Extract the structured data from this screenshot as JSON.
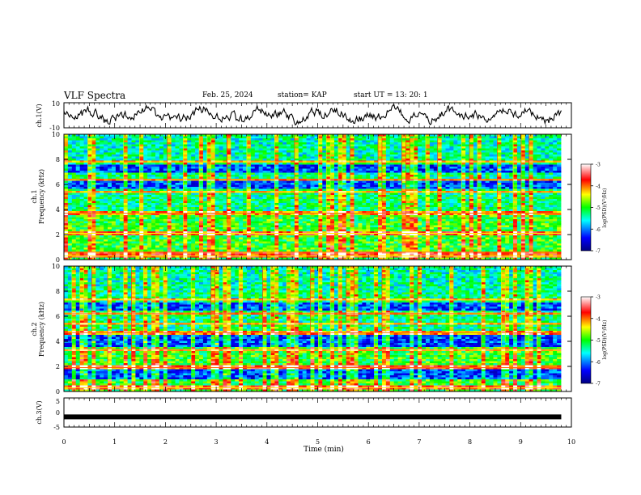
{
  "header": {
    "title": "VLF Spectra",
    "date": "Feb. 25, 2024",
    "station": "station= KAP",
    "start": "start  UT  =   13: 20: 1"
  },
  "chart_data": [
    {
      "type": "line",
      "panel": "ch1-waveform",
      "ylabel": "ch.1(V)",
      "ylim": [
        -10,
        10
      ],
      "yticks": [
        "10",
        "-10"
      ],
      "xlim": [
        0,
        10
      ],
      "color": "#000000"
    },
    {
      "type": "heatmap",
      "panel": "ch1-spectrogram",
      "ylabel_line1": "ch.1",
      "ylabel_line2": "Frequency (kHz)",
      "ylim": [
        0,
        10
      ],
      "yticks": [
        "0",
        "2",
        "4",
        "6",
        "8",
        "10"
      ],
      "xlim": [
        0,
        10
      ],
      "colorbar": {
        "label": "log(PSD)(V²/Hz)",
        "ticks": [
          "-3",
          "-4",
          "-5",
          "-6",
          "-7"
        ],
        "range": [
          -7,
          -3
        ]
      },
      "bands_khz": [
        0.3,
        0.6,
        2.1,
        3.7,
        5.4,
        6.4,
        7.8
      ],
      "quiet_bands_khz": [
        [
          5.6,
          6.3
        ],
        [
          6.9,
          7.6
        ]
      ]
    },
    {
      "type": "heatmap",
      "panel": "ch2-spectrogram",
      "ylabel_line1": "ch.2",
      "ylabel_line2": "Frequency (kHz)",
      "ylim": [
        0,
        10
      ],
      "yticks": [
        "0",
        "2",
        "4",
        "6",
        "8",
        "10"
      ],
      "xlim": [
        0,
        10
      ],
      "colorbar": {
        "label": "log(PSD)(V²/Hz)",
        "ticks": [
          "-3",
          "-4",
          "-5",
          "-6",
          "-7"
        ],
        "range": [
          -7,
          -3
        ]
      },
      "bands_khz": [
        0.3,
        1.9,
        3.3,
        4.7,
        5.4,
        6.2,
        7.3
      ],
      "quiet_bands_khz": [
        [
          3.5,
          4.5
        ],
        [
          6.5,
          7.1
        ],
        [
          1.0,
          1.7
        ]
      ]
    },
    {
      "type": "line",
      "panel": "ch3-waveform",
      "ylabel": "ch.3(V)",
      "ylim": [
        -5,
        5
      ],
      "yticks": [
        "5",
        "0",
        "-5"
      ],
      "xlim": [
        0,
        10
      ],
      "constant_value": -1.5,
      "color": "#000000"
    }
  ],
  "xaxis": {
    "label": "Time  (min)",
    "ticks": [
      "0",
      "1",
      "2",
      "3",
      "4",
      "5",
      "6",
      "7",
      "8",
      "9",
      "10"
    ]
  }
}
